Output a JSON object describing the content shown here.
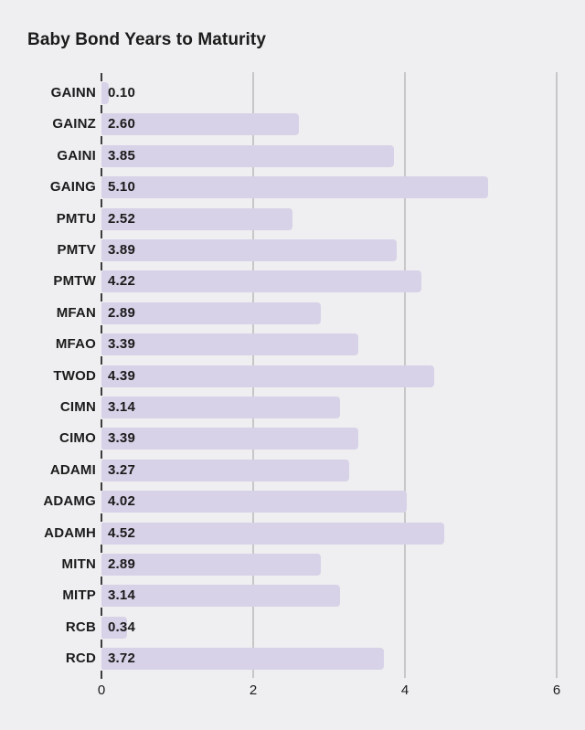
{
  "chart_data": {
    "type": "bar",
    "orientation": "horizontal",
    "title": "Baby Bond Years to Maturity",
    "categories": [
      "GAINN",
      "GAINZ",
      "GAINI",
      "GAING",
      "PMTU",
      "PMTV",
      "PMTW",
      "MFAN",
      "MFAO",
      "TWOD",
      "CIMN",
      "CIMO",
      "ADAMI",
      "ADAMG",
      "ADAMH",
      "MITN",
      "MITP",
      "RCB",
      "RCD"
    ],
    "values": [
      0.1,
      2.6,
      3.85,
      5.1,
      2.52,
      3.89,
      4.22,
      2.89,
      3.39,
      4.39,
      3.14,
      3.39,
      3.27,
      4.02,
      4.52,
      2.89,
      3.14,
      0.34,
      3.72
    ],
    "value_labels": [
      "0.10",
      "2.60",
      "3.85",
      "5.10",
      "2.52",
      "3.89",
      "4.22",
      "2.89",
      "3.39",
      "4.39",
      "3.14",
      "3.39",
      "3.27",
      "4.02",
      "4.52",
      "2.89",
      "3.14",
      "0.34",
      "3.72"
    ],
    "xlabel": "",
    "ylabel": "",
    "xlim": [
      0,
      6
    ],
    "x_ticks": [
      0,
      2,
      4,
      6
    ],
    "x_tick_labels": [
      "0",
      "2",
      "4",
      "6"
    ],
    "grid": "vertical-on",
    "legend": "none",
    "value_labels_position": "inside-bar-start",
    "colors": {
      "background": "#efeef0",
      "bar": "#d8d2e8",
      "gridline": "#c7c7c7",
      "category_tick": "#3c3c3c",
      "text": "#1b1b1b"
    }
  }
}
